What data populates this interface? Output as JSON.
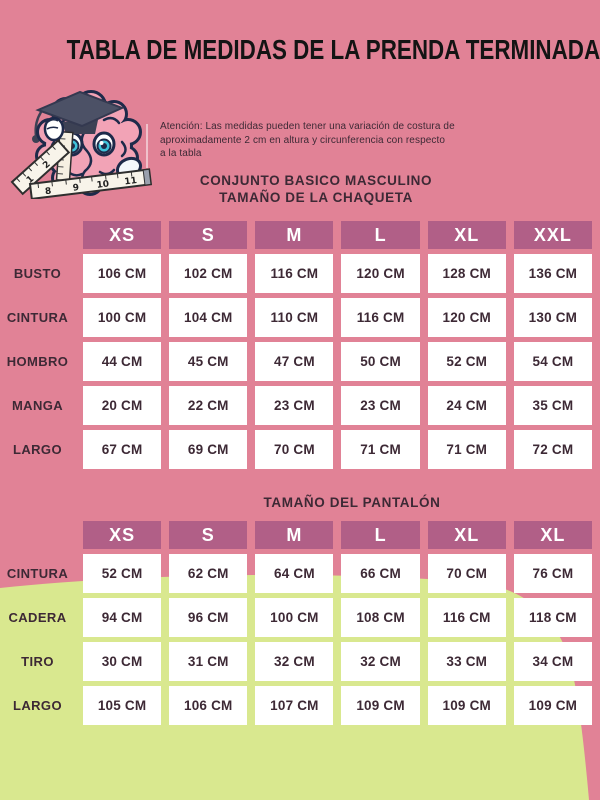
{
  "page": {
    "title": "TABLA DE MEDIDAS DE LA PRENDA TERMINADA",
    "notice_lines": [
      "Atención: Las medidas pueden tener una variación de costura de",
      "aproximadamente 2 cm en altura y circunferencia con respecto",
      "a la tabla"
    ],
    "jacket_section_line1": "CONJUNTO BASICO MASCULINO",
    "jacket_section_line2": "TAMAÑO DE LA CHAQUETA",
    "pants_section_title": "TAMAÑO DEL PANTALÓN"
  },
  "colors": {
    "background_pink": "#e18296",
    "header_mauve": "#b15f87",
    "cell_white": "#ffffff",
    "text_dark": "#3d2935",
    "title_black": "#141414",
    "accent_green": "#d9e88f"
  },
  "mascot": {
    "description": "cartoon brain wearing graduation cap holding a measuring tape"
  },
  "jacket_table": {
    "columns": [
      "XS",
      "S",
      "M",
      "L",
      "XL",
      "XXL"
    ],
    "rows": [
      {
        "label": "BUSTO",
        "values": [
          "106 CM",
          "102 CM",
          "116 CM",
          "120 CM",
          "128 CM",
          "136 CM"
        ]
      },
      {
        "label": "CINTURA",
        "values": [
          "100 CM",
          "104 CM",
          "110 CM",
          "116 CM",
          "120 CM",
          "130 CM"
        ]
      },
      {
        "label": "HOMBRO",
        "values": [
          "44 CM",
          "45 CM",
          "47 CM",
          "50 CM",
          "52 CM",
          "54 CM"
        ]
      },
      {
        "label": "MANGA",
        "values": [
          "20 CM",
          "22 CM",
          "23 CM",
          "23 CM",
          "24 CM",
          "35 CM"
        ]
      },
      {
        "label": "LARGO",
        "values": [
          "67 CM",
          "69 CM",
          "70 CM",
          "71 CM",
          "71 CM",
          "72 CM"
        ]
      }
    ]
  },
  "pants_table": {
    "columns": [
      "XS",
      "S",
      "M",
      "L",
      "XL",
      "XL"
    ],
    "rows": [
      {
        "label": "CINTURA",
        "values": [
          "52 CM",
          "62 CM",
          "64 CM",
          "66 CM",
          "70 CM",
          "76 CM"
        ]
      },
      {
        "label": "CADERA",
        "values": [
          "94 CM",
          "96 CM",
          "100 CM",
          "108 CM",
          "116 CM",
          "118 CM"
        ]
      },
      {
        "label": "TIRO",
        "values": [
          "30 CM",
          "31 CM",
          "32 CM",
          "32 CM",
          "33 CM",
          "34 CM"
        ]
      },
      {
        "label": "LARGO",
        "values": [
          "105 CM",
          "106 CM",
          "107 CM",
          "109 CM",
          "109 CM",
          "109 CM"
        ]
      }
    ]
  }
}
